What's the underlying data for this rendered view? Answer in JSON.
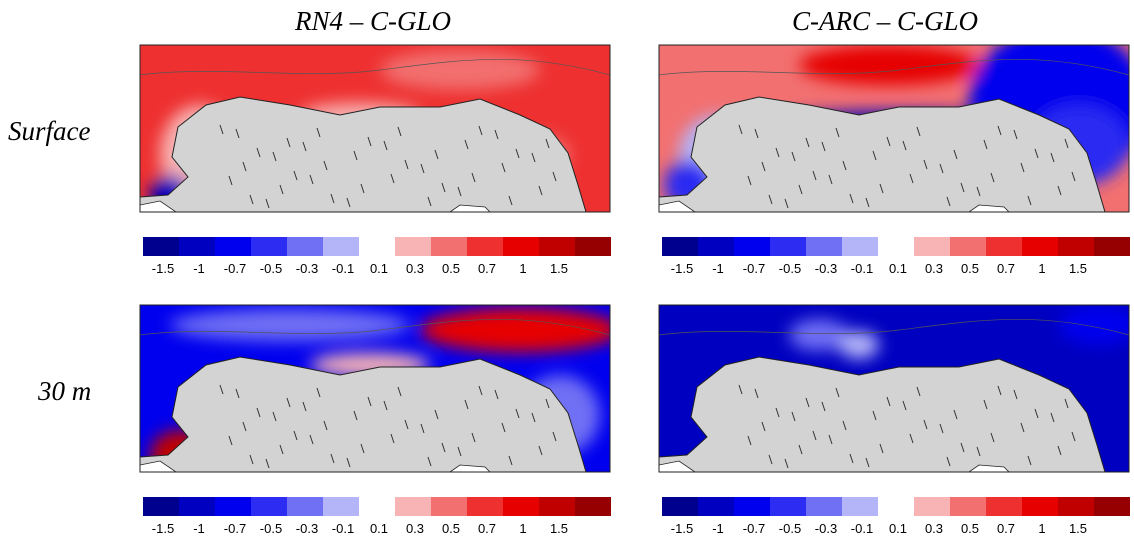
{
  "column_titles": [
    "RN4 – C-GLO",
    "C-ARC – C-GLO"
  ],
  "row_labels": [
    "Surface",
    "30 m"
  ],
  "colorbar": {
    "colors": [
      "#00008f",
      "#0000c0",
      "#0000ee",
      "#2c2cf2",
      "#7070f4",
      "#b4b4f8",
      "#f8b4b4",
      "#f27070",
      "#ee3030",
      "#e60000",
      "#c00000",
      "#960000"
    ],
    "tick_labels": [
      "-1.5",
      "-1",
      "-0.7",
      "-0.5",
      "-0.3",
      "-0.1",
      "0.1",
      "0.3",
      "0.5",
      "0.7",
      "1",
      "1.5"
    ]
  }
}
